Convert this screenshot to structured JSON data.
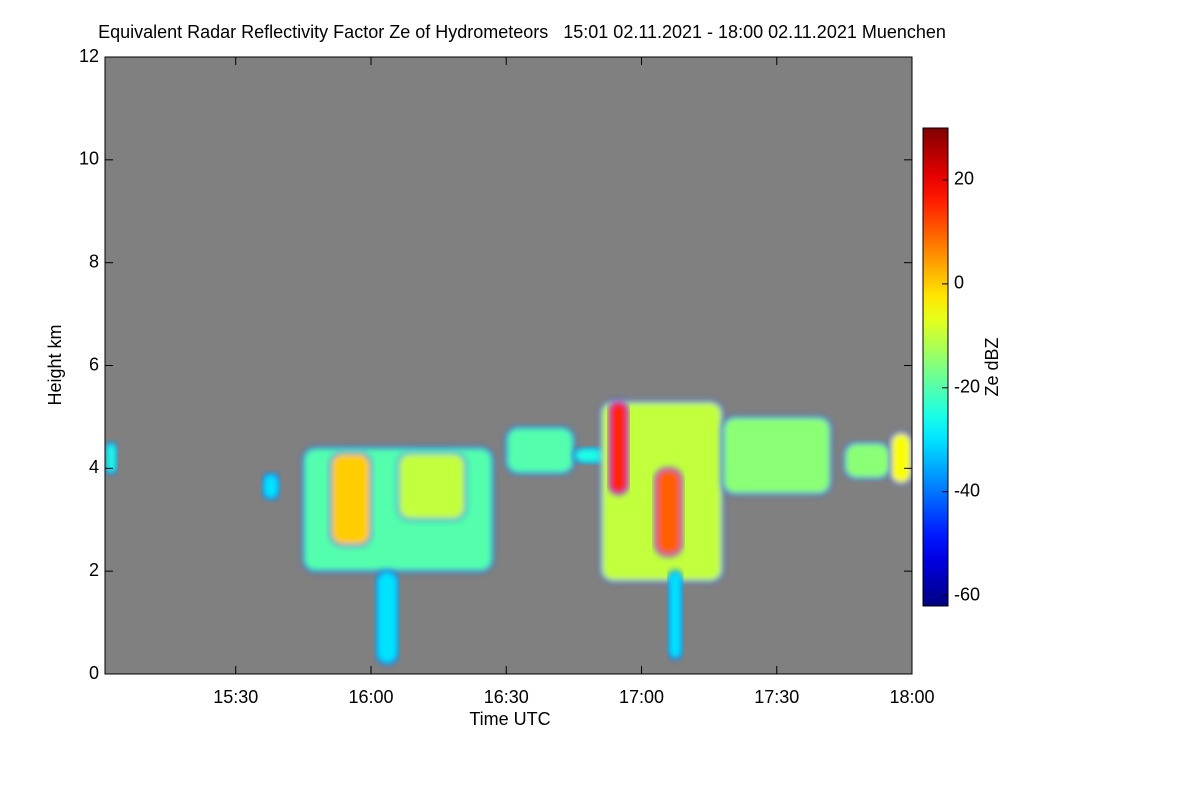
{
  "chart_data": {
    "type": "radar-time-height",
    "title": "Equivalent Radar Reflectivity Factor Ze of Hydrometeors   15:01 02.11.2021 - 18:00 02.11.2021 Muenchen",
    "xlabel": "Time UTC",
    "ylabel": "Height km",
    "colorbar_label": "Ze dBZ",
    "xlim": [
      15.0167,
      18.0
    ],
    "xticks": [
      {
        "value": 15.5,
        "label": "15:30"
      },
      {
        "value": 16,
        "label": "16:00"
      },
      {
        "value": 16.5,
        "label": "16:30"
      },
      {
        "value": 17,
        "label": "17:00"
      },
      {
        "value": 17.5,
        "label": "17:30"
      },
      {
        "value": 18,
        "label": "18:00"
      }
    ],
    "ylim": [
      0,
      12
    ],
    "yticks": [
      0,
      2,
      4,
      6,
      8,
      10,
      12
    ],
    "clim": [
      -62,
      30
    ],
    "cticks": [
      -60,
      -40,
      -20,
      0,
      20
    ],
    "background": "#808080",
    "colormap": "jet",
    "echoes": [
      {
        "t0": 15.02,
        "t1": 15.06,
        "base": 3.9,
        "top": 4.5,
        "dbz": -25
      },
      {
        "t0": 15.6,
        "t1": 15.66,
        "base": 3.4,
        "top": 3.9,
        "dbz": -30
      },
      {
        "t0": 15.75,
        "t1": 16.45,
        "base": 2.0,
        "top": 4.4,
        "dbz": -20
      },
      {
        "t0": 15.85,
        "t1": 16.0,
        "base": 2.5,
        "top": 4.3,
        "dbz": 0
      },
      {
        "t0": 16.1,
        "t1": 16.35,
        "base": 3.0,
        "top": 4.3,
        "dbz": -10
      },
      {
        "t0": 16.02,
        "t1": 16.1,
        "base": 0.2,
        "top": 2.0,
        "dbz": -30
      },
      {
        "t0": 16.5,
        "t1": 16.75,
        "base": 3.9,
        "top": 4.8,
        "dbz": -20
      },
      {
        "t0": 16.75,
        "t1": 16.88,
        "base": 4.1,
        "top": 4.4,
        "dbz": -25
      },
      {
        "t0": 16.85,
        "t1": 17.3,
        "base": 1.8,
        "top": 5.3,
        "dbz": -10
      },
      {
        "t0": 16.88,
        "t1": 16.95,
        "base": 3.5,
        "top": 5.3,
        "dbz": 15
      },
      {
        "t0": 17.05,
        "t1": 17.15,
        "base": 2.3,
        "top": 4.0,
        "dbz": 10
      },
      {
        "t0": 17.1,
        "t1": 17.15,
        "base": 0.3,
        "top": 2.0,
        "dbz": -30
      },
      {
        "t0": 17.3,
        "t1": 17.7,
        "base": 3.5,
        "top": 5.0,
        "dbz": -15
      },
      {
        "t0": 17.75,
        "t1": 17.92,
        "base": 3.8,
        "top": 4.5,
        "dbz": -15
      },
      {
        "t0": 17.92,
        "t1": 18.0,
        "base": 3.7,
        "top": 4.7,
        "dbz": -5
      }
    ]
  }
}
